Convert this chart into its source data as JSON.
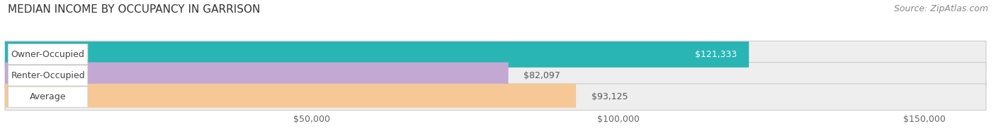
{
  "title": "MEDIAN INCOME BY OCCUPANCY IN GARRISON",
  "source": "Source: ZipAtlas.com",
  "categories": [
    "Owner-Occupied",
    "Renter-Occupied",
    "Average"
  ],
  "values": [
    121333,
    82097,
    93125
  ],
  "labels": [
    "$121,333",
    "$82,097",
    "$93,125"
  ],
  "label_inside": [
    true,
    false,
    false
  ],
  "bar_colors": [
    "#2ab5b5",
    "#c4a8d4",
    "#f5c896"
  ],
  "bar_bg_colors": [
    "#eeeeee",
    "#eeeeee",
    "#eeeeee"
  ],
  "xlim": [
    0,
    160000
  ],
  "xticks": [
    50000,
    100000,
    150000
  ],
  "xticklabels": [
    "$50,000",
    "$100,000",
    "$150,000"
  ],
  "title_fontsize": 11,
  "source_fontsize": 9,
  "tick_fontsize": 9,
  "label_fontsize": 9,
  "bar_label_fontsize": 9,
  "figsize": [
    14.06,
    1.96
  ],
  "dpi": 100
}
